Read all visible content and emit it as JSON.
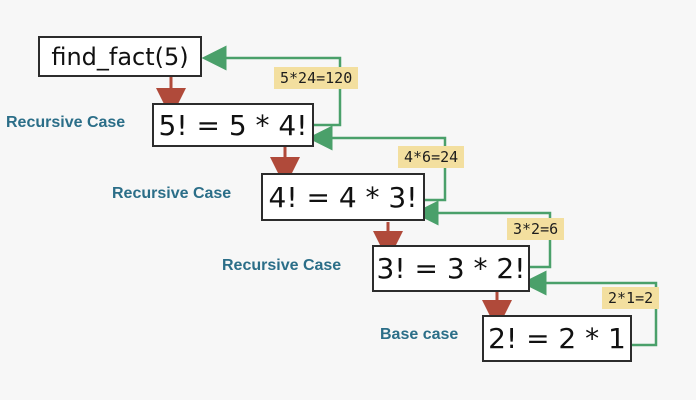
{
  "diagram": {
    "start_call": "find_fact(5)",
    "steps": [
      {
        "case": "Recursive Case",
        "expr": "5! = 5 * 4!",
        "return": "5*24=120"
      },
      {
        "case": "Recursive Case",
        "expr": "4! = 4 * 3!",
        "return": "4*6=24"
      },
      {
        "case": "Recursive Case",
        "expr": "3! = 3 * 2!",
        "return": "3*2=6"
      },
      {
        "case": "Base case",
        "expr": "2! = 2 * 1",
        "return": "2*1=2"
      }
    ],
    "colors": {
      "call_arrow": "#b04a3a",
      "return_arrow": "#4aa06a",
      "case_label": "#2b6e88",
      "return_label_bg": "#f3df9f"
    }
  }
}
